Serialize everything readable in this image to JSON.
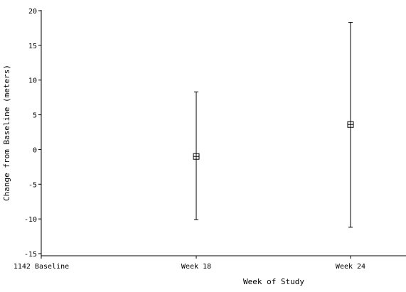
{
  "chart_data": {
    "type": "scatter",
    "title": "",
    "xlabel": "Week of Study",
    "ylabel": "Change from Baseline (meters)",
    "categories": [
      "1142 Baseline",
      "Week 18",
      "Week 24"
    ],
    "ylim": [
      -15,
      20
    ],
    "yticks": [
      -15,
      -10,
      -5,
      0,
      5,
      10,
      15,
      20
    ],
    "grid": false,
    "legend": "none",
    "series": [
      {
        "points": [
          {
            "category": "Week 18",
            "y": -1.0,
            "lower": -10.1,
            "upper": 8.3
          },
          {
            "category": "Week 24",
            "y": 3.6,
            "lower": -11.2,
            "upper": 18.3
          }
        ]
      }
    ],
    "colors": {
      "axis": "#000000",
      "marker": "#000000",
      "background": "#ffffff"
    }
  }
}
